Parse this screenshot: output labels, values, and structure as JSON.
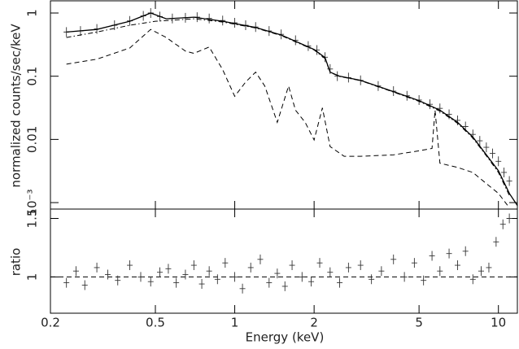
{
  "chart_data": [
    {
      "type": "line",
      "ylabel": "normalized counts/sec/keV",
      "xscale": "log",
      "yscale": "log",
      "xlim": [
        0.2,
        11.8
      ],
      "ylim": [
        0.00079,
        1.56
      ],
      "xticks": [
        0.2,
        0.5,
        1,
        2,
        5,
        10
      ],
      "yticks": [
        1,
        0.1,
        0.01,
        {
          "value": 0.001,
          "label": "10⁻³"
        }
      ],
      "series": [
        {
          "style": "cross",
          "color": "#333333",
          "x": [
            0.23,
            0.26,
            0.3,
            0.35,
            0.4,
            0.45,
            0.48,
            0.52,
            0.58,
            0.65,
            0.72,
            0.8,
            0.9,
            1.0,
            1.1,
            1.2,
            1.35,
            1.5,
            1.7,
            1.9,
            2.05,
            2.2,
            2.3,
            2.45,
            2.7,
            3.0,
            3.5,
            4.0,
            4.5,
            5.0,
            5.5,
            6.0,
            6.5,
            7.0,
            7.5,
            8.0,
            8.5,
            9.0,
            9.5,
            10.0,
            10.5,
            11.0
          ],
          "values": [
            0.5,
            0.52,
            0.56,
            0.64,
            0.75,
            0.9,
            1.0,
            0.88,
            0.82,
            0.84,
            0.86,
            0.82,
            0.76,
            0.7,
            0.64,
            0.6,
            0.52,
            0.46,
            0.37,
            0.3,
            0.26,
            0.2,
            0.13,
            0.1,
            0.095,
            0.086,
            0.07,
            0.058,
            0.049,
            0.042,
            0.036,
            0.031,
            0.025,
            0.02,
            0.016,
            0.012,
            0.0095,
            0.0075,
            0.006,
            0.0045,
            0.003,
            0.0022
          ]
        },
        {
          "style": "solid",
          "color": "#000000",
          "x": [
            0.23,
            0.3,
            0.4,
            0.48,
            0.55,
            0.7,
            0.9,
            1.2,
            1.5,
            2.0,
            2.2,
            2.3,
            2.5,
            3.0,
            4.0,
            5.0,
            6.0,
            7.0,
            8.0,
            9.0,
            10.0,
            11.0,
            11.8
          ],
          "values": [
            0.5,
            0.55,
            0.74,
            1.0,
            0.81,
            0.86,
            0.74,
            0.59,
            0.45,
            0.265,
            0.197,
            0.116,
            0.1,
            0.086,
            0.057,
            0.041,
            0.029,
            0.0186,
            0.0109,
            0.0057,
            0.0032,
            0.0014,
            0.0009
          ]
        },
        {
          "style": "dashdot",
          "color": "#000000",
          "x": [
            0.23,
            0.3,
            0.4,
            0.5,
            0.7,
            0.9,
            1.2,
            1.5,
            2.0,
            2.2,
            2.3,
            2.5,
            3.0,
            4.0,
            5.0,
            6.0,
            7.0,
            8.0,
            9.0,
            10.0,
            11.0
          ],
          "values": [
            0.41,
            0.5,
            0.64,
            0.74,
            0.81,
            0.72,
            0.58,
            0.44,
            0.26,
            0.19,
            0.115,
            0.099,
            0.085,
            0.056,
            0.04,
            0.028,
            0.018,
            0.0105,
            0.0055,
            0.003,
            0.0013
          ]
        },
        {
          "style": "dashed",
          "color": "#000000",
          "x": [
            0.23,
            0.3,
            0.4,
            0.48,
            0.55,
            0.65,
            0.7,
            0.8,
            0.9,
            1.0,
            1.1,
            1.2,
            1.3,
            1.45,
            1.6,
            1.7,
            1.85,
            2.0,
            2.15,
            2.3,
            2.6,
            3.0,
            4.0,
            5.0,
            5.6,
            5.75,
            6.0,
            7.0,
            8.0,
            9.0,
            10.0,
            11.0
          ],
          "values": [
            0.155,
            0.186,
            0.28,
            0.55,
            0.41,
            0.25,
            0.23,
            0.29,
            0.127,
            0.048,
            0.081,
            0.116,
            0.07,
            0.0186,
            0.07,
            0.029,
            0.0186,
            0.0098,
            0.0316,
            0.0077,
            0.0054,
            0.0054,
            0.0057,
            0.0066,
            0.0072,
            0.029,
            0.0042,
            0.0036,
            0.003,
            0.002,
            0.0014,
            0.00083
          ]
        }
      ]
    },
    {
      "type": "scatter",
      "xlabel": "Energy (keV)",
      "ylabel": "ratio",
      "xscale": "log",
      "xlim": [
        0.2,
        11.8
      ],
      "ylim": [
        0.69,
        1.58
      ],
      "xticks": [
        0.2,
        0.5,
        1,
        2,
        5,
        10
      ],
      "yticks": [
        1,
        1.5
      ],
      "series": [
        {
          "style": "cross",
          "color": "#333333",
          "x": [
            0.23,
            0.25,
            0.27,
            0.3,
            0.33,
            0.36,
            0.4,
            0.44,
            0.48,
            0.52,
            0.56,
            0.6,
            0.65,
            0.7,
            0.75,
            0.8,
            0.86,
            0.92,
            1.0,
            1.07,
            1.15,
            1.25,
            1.35,
            1.45,
            1.55,
            1.65,
            1.8,
            1.95,
            2.1,
            2.3,
            2.5,
            2.7,
            3.0,
            3.3,
            3.6,
            4.0,
            4.4,
            4.8,
            5.2,
            5.6,
            6.0,
            6.5,
            7.0,
            7.5,
            8.0,
            8.6,
            9.2,
            9.8,
            10.4,
            11.0
          ],
          "values": [
            0.95,
            1.05,
            0.93,
            1.08,
            1.02,
            0.97,
            1.1,
            1.0,
            0.96,
            1.04,
            1.07,
            0.95,
            1.02,
            1.1,
            0.94,
            1.05,
            0.98,
            1.12,
            1.0,
            0.9,
            1.08,
            1.15,
            0.95,
            1.03,
            0.92,
            1.1,
            1.0,
            0.96,
            1.12,
            1.04,
            0.95,
            1.08,
            1.1,
            0.98,
            1.05,
            1.15,
            1.0,
            1.12,
            0.97,
            1.18,
            1.05,
            1.2,
            1.1,
            1.22,
            0.98,
            1.05,
            1.08,
            1.3,
            1.45,
            1.5
          ]
        }
      ]
    }
  ]
}
